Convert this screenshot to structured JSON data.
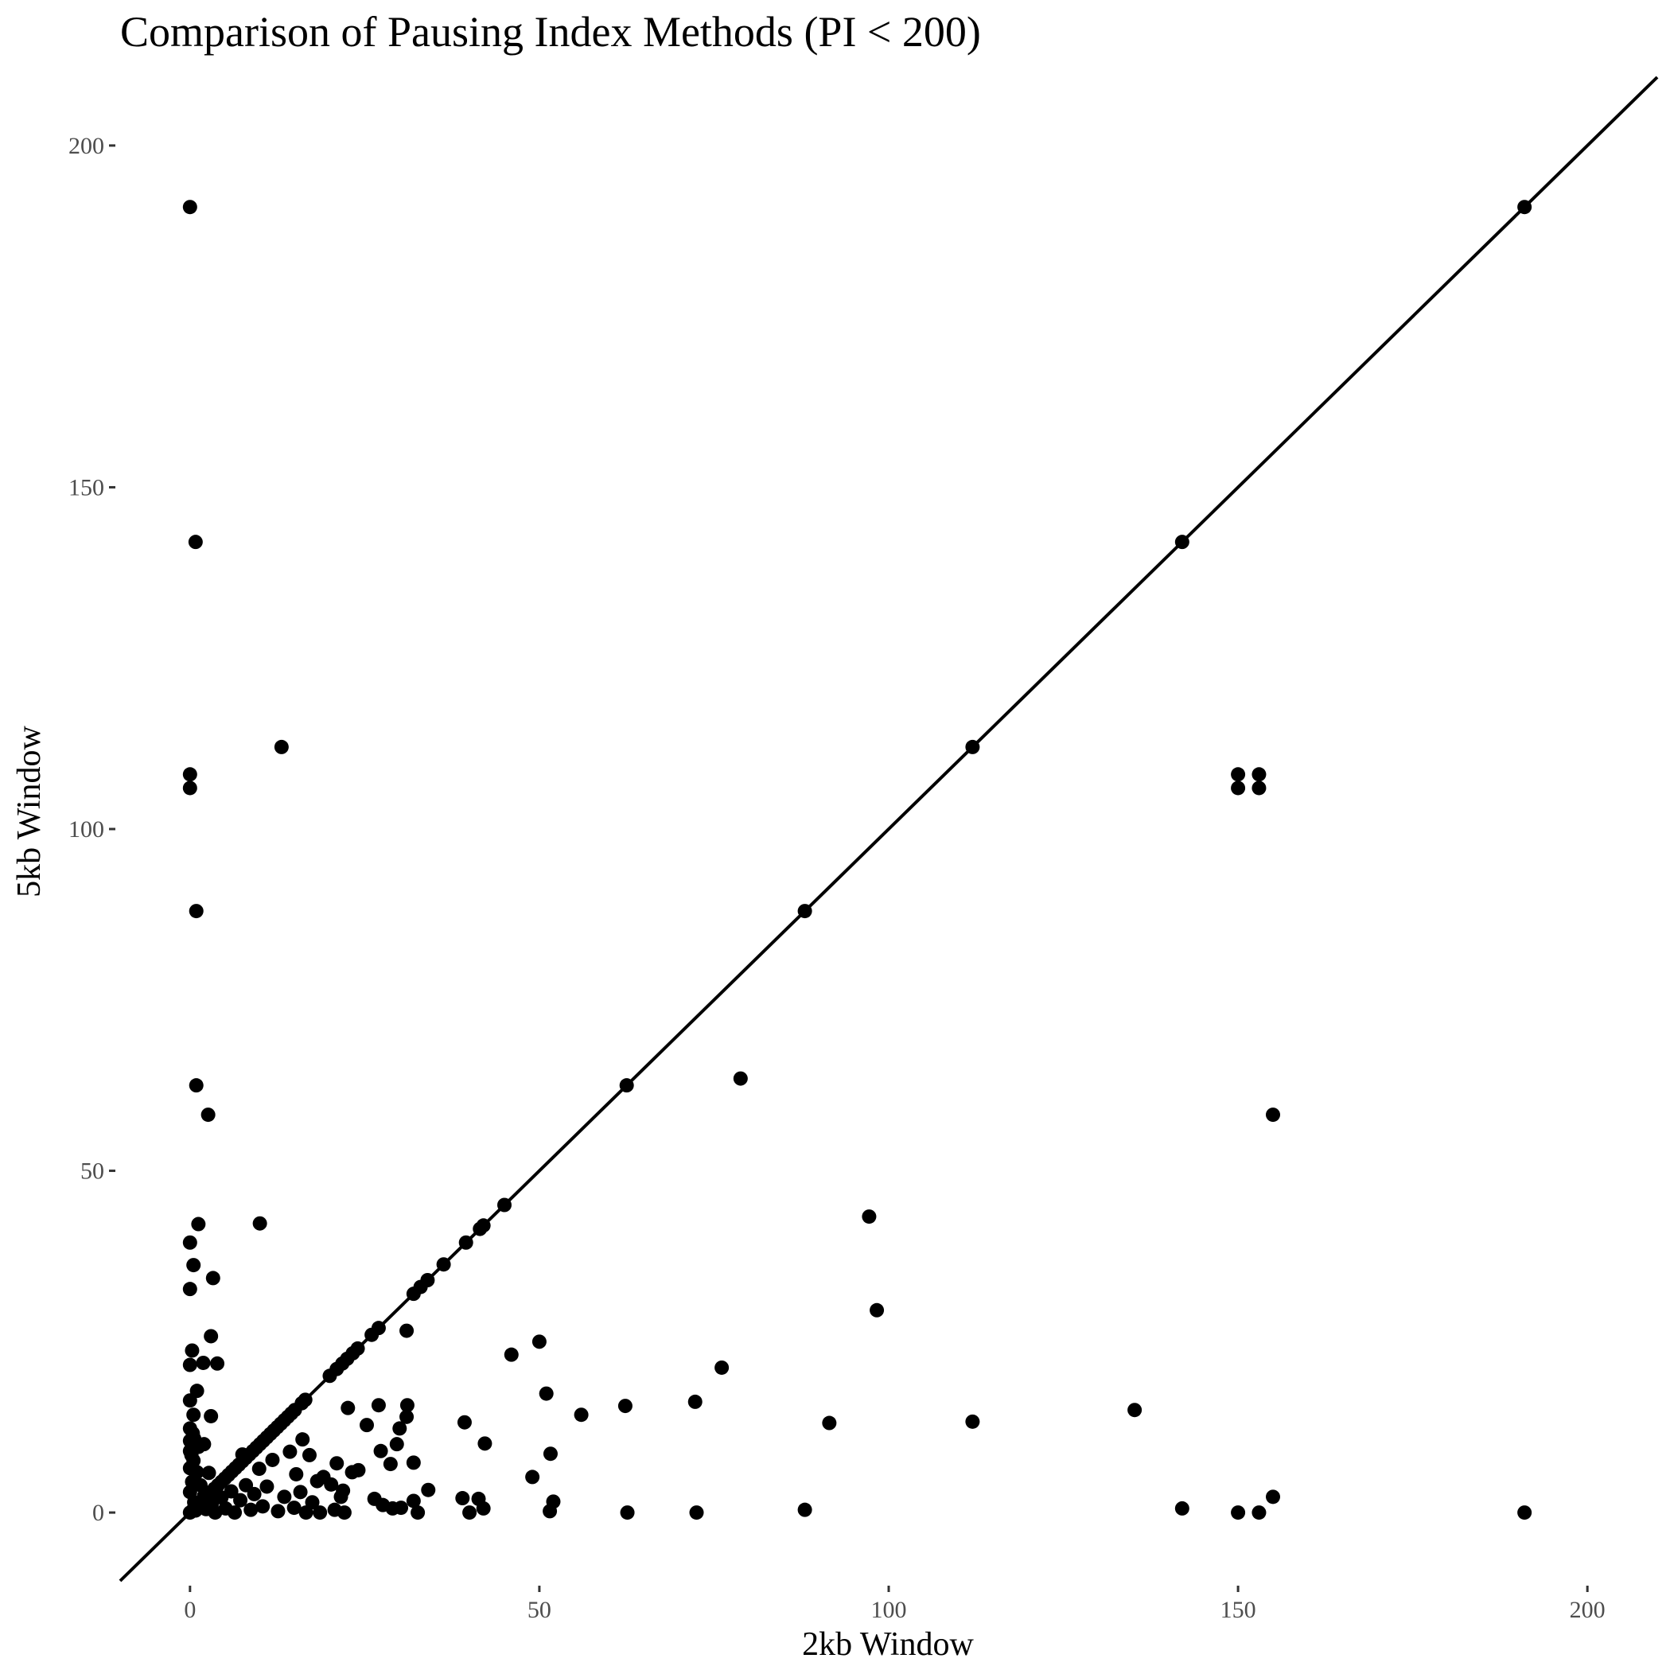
{
  "chart_data": {
    "type": "scatter",
    "title": "Comparison of Pausing Index Methods (PI < 200)",
    "xlabel": "2kb Window",
    "ylabel": "5kb Window",
    "xlim": [
      -10,
      210
    ],
    "ylim": [
      -10,
      210
    ],
    "xticks": [
      0,
      50,
      100,
      150,
      200
    ],
    "yticks": [
      0,
      50,
      100,
      150,
      200
    ],
    "x_tick_labels": [
      "0",
      "50",
      "100",
      "150",
      "200"
    ],
    "y_tick_labels": [
      "0",
      "50",
      "100",
      "150",
      "200"
    ],
    "grid": false,
    "legend": "none",
    "reference_line": {
      "slope": 1,
      "intercept": 0
    },
    "point_color": "#000000",
    "series": [
      {
        "points": [
          [
            0,
            191
          ],
          [
            0.8,
            142
          ],
          [
            0,
            108
          ],
          [
            0,
            106
          ],
          [
            0.9,
            88
          ],
          [
            0.9,
            62.5
          ],
          [
            2.6,
            58.2
          ],
          [
            1.2,
            42.2
          ],
          [
            0,
            39.5
          ],
          [
            0.5,
            36.2
          ],
          [
            3.3,
            34.3
          ],
          [
            0,
            32.7
          ],
          [
            3,
            25.8
          ],
          [
            0.3,
            23.7
          ],
          [
            3.9,
            21.8
          ],
          [
            0,
            21.6
          ],
          [
            1.9,
            21.9
          ],
          [
            1,
            17.8
          ],
          [
            0,
            16.4
          ],
          [
            0.5,
            14.3
          ],
          [
            3,
            14.1
          ],
          [
            0,
            12.3
          ],
          [
            0.4,
            11.6
          ],
          [
            0.6,
            10.8
          ],
          [
            0,
            10.5
          ],
          [
            2,
            10
          ],
          [
            0,
            9
          ],
          [
            1.2,
            9.6
          ],
          [
            0.2,
            8.4
          ],
          [
            0.5,
            7.6
          ],
          [
            0,
            6.5
          ],
          [
            1,
            5.9
          ],
          [
            0.3,
            4.5
          ],
          [
            2.7,
            5.8
          ],
          [
            1.5,
            4
          ],
          [
            0,
            3
          ],
          [
            2,
            2.4
          ],
          [
            0.6,
            1.5
          ],
          [
            1.1,
            0.8
          ],
          [
            0,
            0
          ],
          [
            0.8,
            0.3
          ],
          [
            2.3,
            0.5
          ],
          [
            3.1,
            1.2
          ],
          [
            3.6,
            0
          ],
          [
            4.5,
            2.2
          ],
          [
            5.1,
            0.6
          ],
          [
            5.9,
            3.1
          ],
          [
            6.4,
            0
          ],
          [
            7.2,
            1.8
          ],
          [
            7.5,
            8.5
          ],
          [
            8,
            4
          ],
          [
            8.7,
            0.4
          ],
          [
            9.2,
            2.7
          ],
          [
            9.9,
            6.4
          ],
          [
            10.4,
            0.9
          ],
          [
            10,
            42.3
          ],
          [
            11,
            3.8
          ],
          [
            11.8,
            7.7
          ],
          [
            12.6,
            0.2
          ],
          [
            13.1,
            112
          ],
          [
            13.5,
            2.3
          ],
          [
            14.3,
            8.9
          ],
          [
            14.9,
            0.7
          ],
          [
            15.2,
            5.6
          ],
          [
            15.8,
            3
          ],
          [
            16.1,
            10.7
          ],
          [
            16.6,
            0
          ],
          [
            17.1,
            8.4
          ],
          [
            17.5,
            1.5
          ],
          [
            18.2,
            4.6
          ],
          [
            18.6,
            0
          ],
          [
            19.1,
            5.2
          ],
          [
            20.2,
            4.1
          ],
          [
            20.7,
            0.4
          ],
          [
            21,
            7.2
          ],
          [
            21.6,
            2.3
          ],
          [
            21.9,
            3.2
          ],
          [
            22.1,
            0
          ],
          [
            22.6,
            15.3
          ],
          [
            23.2,
            5.9
          ],
          [
            24.1,
            6.2
          ],
          [
            25.3,
            12.8
          ],
          [
            26.4,
            2
          ],
          [
            27,
            15.7
          ],
          [
            27.3,
            9
          ],
          [
            27.6,
            1.1
          ],
          [
            28.7,
            7.1
          ],
          [
            29,
            0.6
          ],
          [
            29.6,
            10
          ],
          [
            30,
            12.3
          ],
          [
            30.2,
            0.7
          ],
          [
            31,
            14
          ],
          [
            31.1,
            15.7
          ],
          [
            31,
            26.6
          ],
          [
            32,
            7.3
          ],
          [
            32,
            1.7
          ],
          [
            32.6,
            0
          ],
          [
            34.1,
            3.3
          ],
          [
            39,
            2.1
          ],
          [
            39.3,
            13.2
          ],
          [
            40,
            0
          ],
          [
            41.3,
            2
          ],
          [
            42,
            0.6
          ],
          [
            42.2,
            10.1
          ],
          [
            46,
            23.1
          ],
          [
            49,
            5.2
          ],
          [
            50,
            25
          ],
          [
            51,
            17.4
          ],
          [
            51.5,
            0.2
          ],
          [
            51.6,
            8.6
          ],
          [
            52,
            1.6
          ],
          [
            56,
            14.3
          ],
          [
            62.3,
            15.6
          ],
          [
            62.6,
            0
          ],
          [
            72.3,
            16.2
          ],
          [
            72.5,
            0
          ],
          [
            76.1,
            21.2
          ],
          [
            78.8,
            63.5
          ],
          [
            88,
            0.4
          ],
          [
            91.5,
            13.1
          ],
          [
            97.2,
            43.3
          ],
          [
            98.3,
            29.6
          ],
          [
            112,
            13.3
          ],
          [
            135.2,
            15
          ],
          [
            142,
            0.6
          ],
          [
            150,
            108
          ],
          [
            150,
            106
          ],
          [
            150,
            0
          ],
          [
            153,
            108
          ],
          [
            153,
            106
          ],
          [
            153,
            0
          ],
          [
            155,
            58.2
          ],
          [
            155,
            2.3
          ],
          [
            191,
            0
          ],
          [
            0.5,
            0.5
          ],
          [
            1,
            1
          ],
          [
            1.5,
            1.5
          ],
          [
            2,
            2
          ],
          [
            2.5,
            2.5
          ],
          [
            3,
            3
          ],
          [
            3.5,
            3.5
          ],
          [
            4,
            4
          ],
          [
            4.5,
            4.5
          ],
          [
            5,
            5
          ],
          [
            5.5,
            5.5
          ],
          [
            6,
            6
          ],
          [
            6.5,
            6.5
          ],
          [
            7,
            7
          ],
          [
            7.5,
            7.5
          ],
          [
            8,
            8
          ],
          [
            8.5,
            8.5
          ],
          [
            9,
            9
          ],
          [
            9.5,
            9.5
          ],
          [
            10,
            10
          ],
          [
            10.5,
            10.5
          ],
          [
            11,
            11
          ],
          [
            11.5,
            11.5
          ],
          [
            12,
            12
          ],
          [
            12.5,
            12.5
          ],
          [
            13,
            13
          ],
          [
            13.5,
            13.5
          ],
          [
            14,
            14
          ],
          [
            14.5,
            14.5
          ],
          [
            15,
            15
          ],
          [
            16,
            16
          ],
          [
            16.5,
            16.5
          ],
          [
            20,
            20
          ],
          [
            21,
            21
          ],
          [
            21.8,
            21.8
          ],
          [
            22.5,
            22.5
          ],
          [
            23.3,
            23.3
          ],
          [
            24,
            24
          ],
          [
            26,
            26
          ],
          [
            27,
            27
          ],
          [
            32,
            32
          ],
          [
            33,
            33
          ],
          [
            34,
            34
          ],
          [
            36.3,
            36.3
          ],
          [
            39.5,
            39.5
          ],
          [
            41.5,
            41.5
          ],
          [
            42,
            42
          ],
          [
            45,
            45
          ],
          [
            62.5,
            62.5
          ],
          [
            88,
            88
          ],
          [
            112,
            112
          ],
          [
            142,
            142
          ],
          [
            191,
            191
          ]
        ]
      }
    ]
  }
}
